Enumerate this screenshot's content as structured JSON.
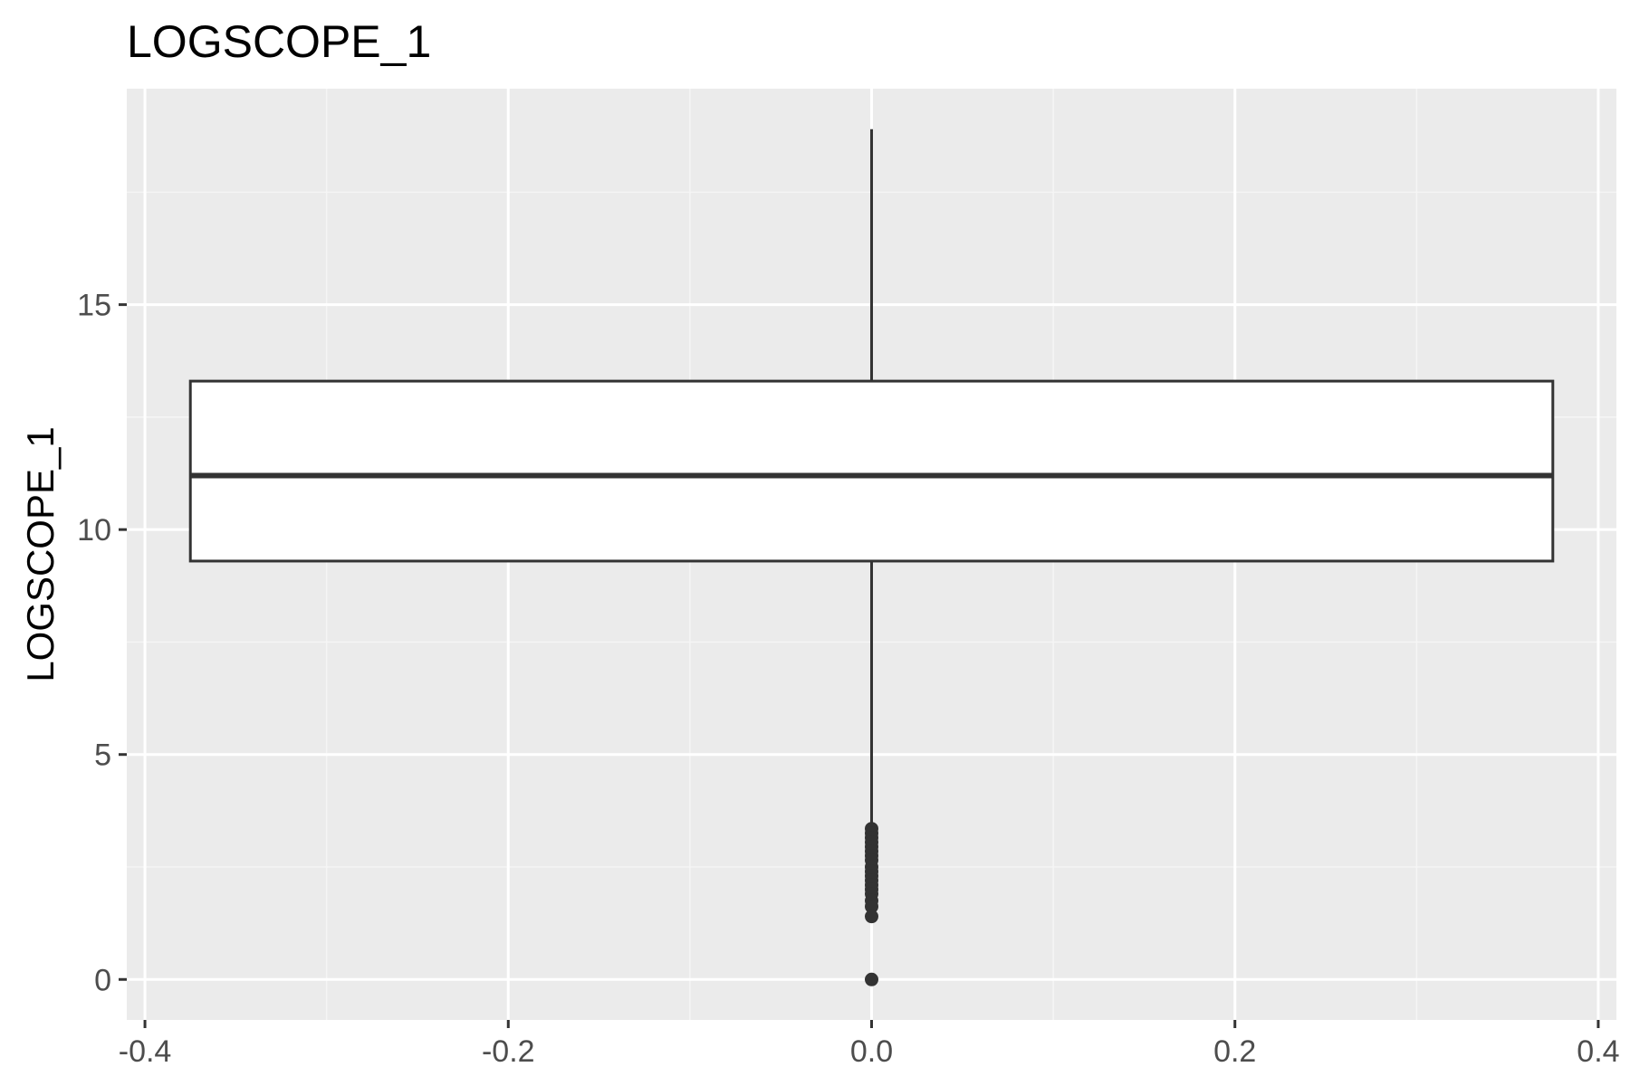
{
  "colors": {
    "panel_background": "#EBEBEB",
    "grid_major": "#FFFFFF",
    "grid_minor": "#F5F5F5",
    "box_fill": "#FFFFFF",
    "box_line": "#333333",
    "tick_text": "#4D4D4D"
  },
  "chart_data": {
    "type": "boxplot",
    "title": "LOGSCOPE_1",
    "xlabel": "",
    "ylabel": "LOGSCOPE_1",
    "xlim": [
      -0.41,
      0.41
    ],
    "ylim": [
      -0.9,
      19.8
    ],
    "x_ticks": [
      -0.4,
      -0.2,
      0.0,
      0.2,
      0.4
    ],
    "x_tick_labels": [
      "-0.4",
      "-0.2",
      "0.0",
      "0.2",
      "0.4"
    ],
    "y_ticks": [
      0,
      5,
      10,
      15
    ],
    "y_tick_labels": [
      "0",
      "5",
      "10",
      "15"
    ],
    "grid": true,
    "legend": "none",
    "box": {
      "x_center": 0.0,
      "x_left": -0.375,
      "x_right": 0.375,
      "q1": 9.3,
      "median": 11.2,
      "q3": 13.3,
      "whisker_low": 3.4,
      "whisker_high": 18.9
    },
    "outliers": [
      3.35,
      3.25,
      3.15,
      3.05,
      2.95,
      2.85,
      2.75,
      2.65,
      2.5,
      2.4,
      2.3,
      2.2,
      2.1,
      2.0,
      1.9,
      1.75,
      1.62,
      1.4,
      0.0
    ]
  }
}
